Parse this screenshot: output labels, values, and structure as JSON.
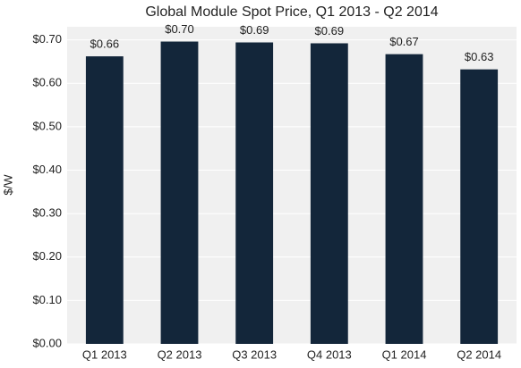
{
  "chart_data": {
    "type": "bar",
    "title": "Global Module Spot Price, Q1 2013 - Q2 2014",
    "y_label": "$/W",
    "categories": [
      "Q1 2013",
      "Q2 2013",
      "Q3 2013",
      "Q4 2013",
      "Q1 2014",
      "Q2 2014"
    ],
    "values": [
      0.662,
      0.696,
      0.694,
      0.692,
      0.667,
      0.632
    ],
    "value_labels": [
      "$0.66",
      "$0.70",
      "$0.69",
      "$0.69",
      "$0.67",
      "$0.63"
    ],
    "color": "#13263a",
    "ylim": [
      0,
      0.73
    ],
    "yticks": [
      {
        "value": 0,
        "label": "$0.00"
      },
      {
        "value": 0.1,
        "label": "$0.10"
      },
      {
        "value": 0.2,
        "label": "$0.20"
      },
      {
        "value": 0.3,
        "label": "$0.30"
      },
      {
        "value": 0.4,
        "label": "$0.40"
      },
      {
        "value": 0.5,
        "label": "$0.50"
      },
      {
        "value": 0.6,
        "label": "$0.60"
      },
      {
        "value": 0.7,
        "label": "$0.70"
      }
    ],
    "grid": true
  }
}
